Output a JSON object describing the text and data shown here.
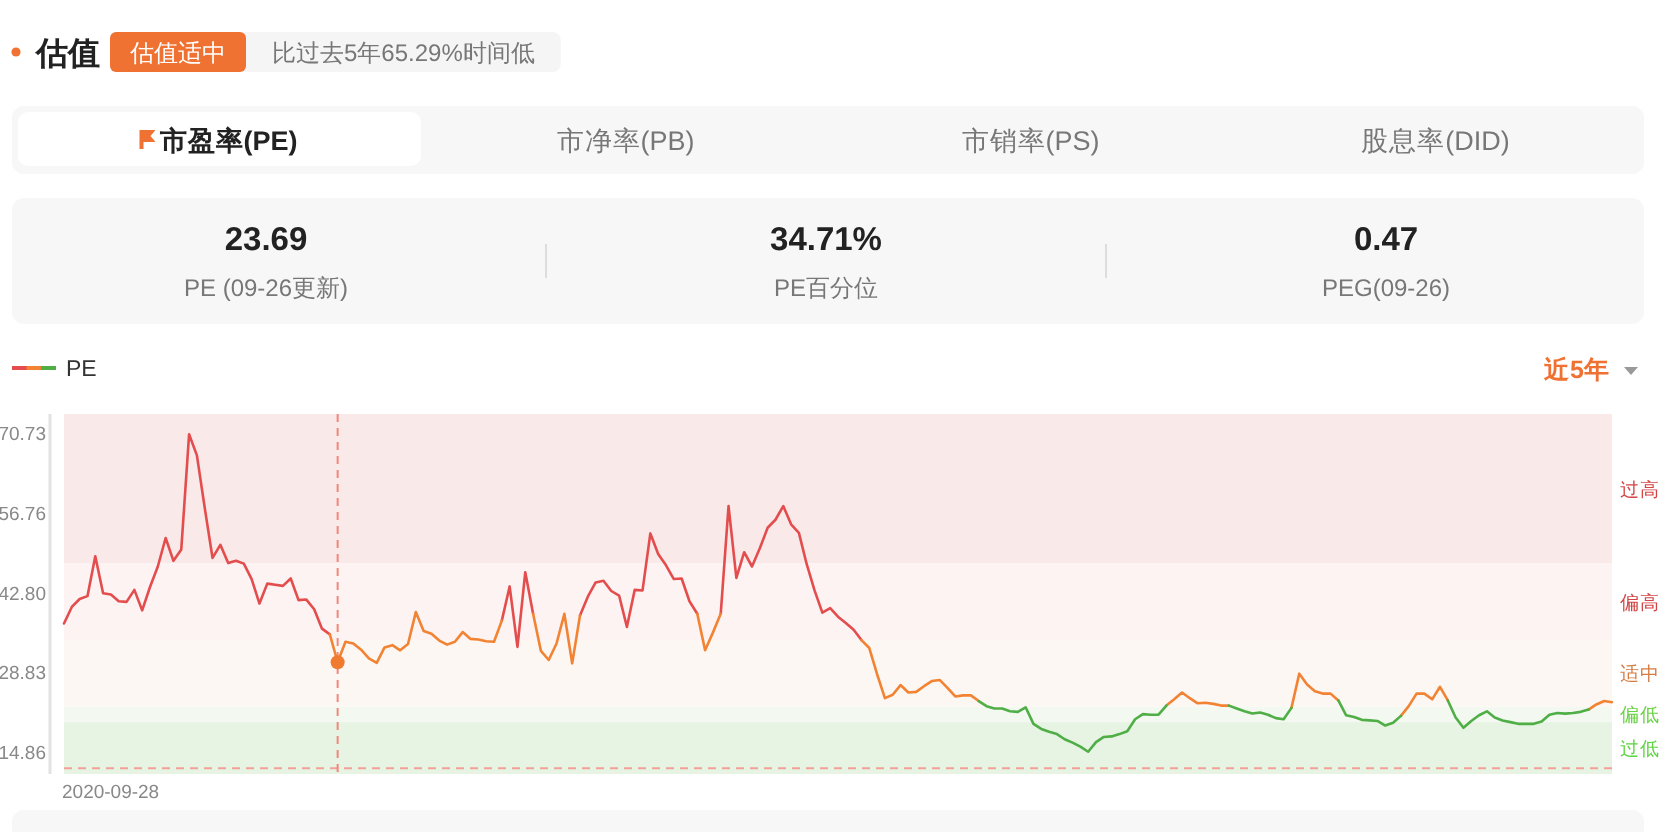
{
  "chart_data": {
    "type": "line",
    "title": "估值",
    "subtitle": "比过去5年65.29%时间低",
    "annotations": [
      "估值适中",
      "市盈率(PE)",
      "市净率(PB)",
      "市销率(PS)",
      "股息率(DID)",
      "23.69",
      "PE (09-26更新)",
      "34.71%",
      "PE百分位",
      "0.47",
      "PEG(09-26)",
      "近5年",
      "2020-09-28"
    ],
    "categories": [
      null,
      null,
      null,
      null,
      null,
      null,
      null,
      null,
      null,
      null,
      null,
      null,
      null,
      null,
      null,
      null,
      null,
      null,
      null,
      null,
      null,
      null,
      null,
      null,
      null,
      null,
      null,
      null,
      null,
      null,
      null,
      null,
      null,
      null,
      null,
      null,
      null,
      null,
      null,
      null,
      null,
      null,
      null,
      null,
      null,
      null,
      null,
      null,
      null,
      null,
      null,
      null,
      null,
      null,
      null,
      null,
      null,
      null,
      null,
      null,
      null,
      null,
      null,
      null,
      null,
      null,
      null,
      null,
      null,
      null,
      null,
      null,
      null,
      null,
      null,
      null,
      null,
      null,
      null,
      null,
      null,
      null,
      null,
      null,
      null,
      null,
      null,
      null,
      null,
      null,
      null,
      null,
      null,
      null,
      null,
      null,
      null,
      null,
      null,
      null,
      null,
      null,
      null,
      null,
      null,
      null,
      null,
      null,
      null,
      null,
      null,
      null,
      null,
      null,
      null,
      null,
      null,
      null,
      null,
      null,
      null,
      null,
      null,
      null,
      null,
      null,
      null,
      null,
      null,
      null,
      null,
      null,
      null,
      null,
      null,
      null,
      null,
      null,
      null,
      null,
      null,
      null,
      null,
      null,
      null,
      null,
      null,
      null,
      null,
      null,
      null,
      null,
      null,
      null,
      null,
      null,
      null,
      null,
      null,
      null,
      null,
      null,
      null,
      null,
      null,
      null,
      null,
      null,
      null,
      null,
      null,
      null,
      null,
      null,
      null,
      null,
      null,
      null,
      null,
      null,
      null,
      null,
      null,
      null,
      null,
      null,
      null,
      null,
      null,
      null,
      null,
      null,
      null,
      null,
      null,
      null,
      null,
      null,
      null
    ],
    "ylim": [
      11.1,
      74.25
    ],
    "yticks": [
      {
        "value": 14.86,
        "label": "14.86"
      },
      {
        "value": 28.83,
        "label": "28.83"
      },
      {
        "value": 42.8,
        "label": "42.80"
      },
      {
        "value": 56.76,
        "label": "56.76"
      },
      {
        "value": 70.73,
        "label": "70.73"
      }
    ],
    "legend": "top left",
    "bands": [
      {
        "axis": "y",
        "from": 48.1,
        "to": 74.25,
        "label": "过高",
        "color": "#f9e9e9"
      },
      {
        "axis": "y",
        "from": 34.6,
        "to": 48.1,
        "label": "偏高",
        "color": "#fdf3f3"
      },
      {
        "axis": "y",
        "from": 22.9,
        "to": 34.6,
        "label": "适中",
        "color": "#fdf7f3"
      },
      {
        "axis": "y",
        "from": 20.2,
        "to": 22.9,
        "label": "偏低",
        "color": "#f3f9f1"
      },
      {
        "axis": "y",
        "from": 11.1,
        "to": 20.2,
        "label": "过低",
        "color": "#e7f4e4"
      }
    ],
    "ref_lines": [
      {
        "axis": "y",
        "value": 12.1,
        "color": "#f2a097",
        "line_style": "dashed"
      }
    ],
    "series": [
      {
        "name": "PE",
        "color": "#e34d4d",
        "values": [
          37.5,
          40.4,
          41.8,
          42.3,
          49.3,
          42.8,
          42.6,
          41.4,
          41.3,
          43.4,
          39.8,
          43.9,
          47.5,
          52.5,
          48.5,
          50.5,
          70.7,
          67.0,
          57.8,
          49.0,
          51.3,
          48.1,
          48.5,
          48.0,
          45.3,
          41.0,
          44.5,
          44.3,
          44.1,
          45.4,
          41.6,
          41.7,
          40.0,
          36.6,
          35.6,
          null,
          null,
          null,
          null,
          null,
          null,
          null,
          null,
          null,
          null,
          null,
          null,
          null,
          null,
          null,
          null,
          null,
          null,
          null,
          null,
          null,
          38.0,
          44.0,
          33.4,
          46.5,
          39.2,
          null,
          null,
          null,
          null,
          null,
          38.9,
          42.2,
          44.7,
          45.0,
          43.2,
          42.4,
          36.9,
          43.4,
          43.3,
          53.3,
          49.7,
          47.7,
          45.3,
          45.4,
          41.4,
          39.2,
          null,
          null,
          39.2,
          58.1,
          45.5,
          50.0,
          47.5,
          50.7,
          54.3,
          55.7,
          58.1,
          54.9,
          53.4,
          47.9,
          43.3,
          39.4,
          40.2,
          38.7,
          37.6,
          36.4,
          34.6,
          null,
          null,
          null,
          null,
          null,
          null,
          null,
          null,
          null,
          null,
          null,
          null,
          null,
          null,
          null,
          null,
          null,
          null,
          null,
          null,
          null,
          null,
          null,
          null,
          null,
          null,
          null,
          null,
          null,
          null,
          null,
          null,
          null,
          null,
          null,
          null,
          null,
          null,
          null,
          null,
          null,
          null,
          null,
          null,
          null,
          null,
          null,
          null,
          null,
          null,
          null,
          null,
          null,
          null,
          null,
          null,
          null,
          null,
          null,
          null,
          null,
          null,
          null,
          null,
          null,
          null,
          null,
          null,
          null,
          null,
          null,
          null,
          null,
          null,
          null,
          null,
          null,
          null,
          null,
          null,
          null,
          null,
          null,
          null,
          null,
          null,
          null,
          null,
          null,
          null,
          null,
          null,
          null,
          null,
          null,
          null
        ]
      },
      {
        "color": "#f28333",
        "values": [
          null,
          null,
          null,
          null,
          null,
          null,
          null,
          null,
          null,
          null,
          null,
          null,
          null,
          null,
          null,
          null,
          null,
          null,
          null,
          null,
          null,
          null,
          null,
          null,
          null,
          null,
          null,
          null,
          null,
          null,
          null,
          null,
          null,
          null,
          35.6,
          30.7,
          34.3,
          34.0,
          32.9,
          31.4,
          30.6,
          33.3,
          33.7,
          32.8,
          33.9,
          39.5,
          36.2,
          35.7,
          34.5,
          33.8,
          34.3,
          36.0,
          34.8,
          34.7,
          34.4,
          34.3,
          38.0,
          null,
          null,
          null,
          39.2,
          32.7,
          31.1,
          34.0,
          39.2,
          30.5,
          38.9,
          null,
          null,
          null,
          null,
          null,
          null,
          null,
          null,
          null,
          null,
          null,
          null,
          null,
          null,
          39.2,
          32.8,
          35.9,
          39.2,
          null,
          null,
          null,
          null,
          null,
          null,
          null,
          null,
          null,
          null,
          null,
          null,
          null,
          null,
          null,
          null,
          null,
          34.6,
          33.2,
          28.6,
          24.4,
          25.0,
          26.7,
          25.4,
          25.5,
          26.5,
          27.4,
          27.6,
          26.2,
          24.7,
          24.9,
          24.9,
          23.9,
          null,
          null,
          null,
          null,
          null,
          null,
          null,
          null,
          null,
          null,
          null,
          null,
          null,
          null,
          null,
          null,
          null,
          null,
          null,
          null,
          null,
          null,
          null,
          23.1,
          24.2,
          25.4,
          24.4,
          23.5,
          23.6,
          23.4,
          23.1,
          23.1,
          null,
          null,
          null,
          null,
          null,
          null,
          null,
          22.7,
          28.7,
          26.8,
          25.6,
          25.2,
          25.2,
          24.0,
          null,
          null,
          null,
          null,
          null,
          null,
          null,
          21.3,
          23.0,
          25.2,
          25.2,
          24.2,
          26.4,
          24.0,
          null,
          null,
          null,
          null,
          null,
          null,
          null,
          null,
          null,
          null,
          null,
          null,
          null,
          null,
          null,
          null,
          null,
          22.4,
          23.3,
          23.9,
          23.7
        ]
      },
      {
        "color": "#4fae45",
        "values": [
          null,
          null,
          null,
          null,
          null,
          null,
          null,
          null,
          null,
          null,
          null,
          null,
          null,
          null,
          null,
          null,
          null,
          null,
          null,
          null,
          null,
          null,
          null,
          null,
          null,
          null,
          null,
          null,
          null,
          null,
          null,
          null,
          null,
          null,
          null,
          null,
          null,
          null,
          null,
          null,
          null,
          null,
          null,
          null,
          null,
          null,
          null,
          null,
          null,
          null,
          null,
          null,
          null,
          null,
          null,
          null,
          null,
          null,
          null,
          null,
          null,
          null,
          null,
          null,
          null,
          null,
          null,
          null,
          null,
          null,
          null,
          null,
          null,
          null,
          null,
          null,
          null,
          null,
          null,
          null,
          null,
          null,
          null,
          null,
          null,
          null,
          null,
          null,
          null,
          null,
          null,
          null,
          null,
          null,
          null,
          null,
          null,
          null,
          null,
          null,
          null,
          null,
          null,
          null,
          null,
          null,
          null,
          null,
          null,
          null,
          null,
          null,
          null,
          null,
          null,
          null,
          null,
          23.9,
          23.0,
          22.6,
          22.6,
          22.1,
          22.0,
          22.8,
          19.9,
          19.0,
          18.5,
          18.1,
          17.2,
          16.6,
          15.9,
          15.0,
          16.7,
          17.6,
          17.7,
          18.1,
          18.6,
          20.7,
          21.6,
          21.5,
          21.5,
          23.1,
          null,
          null,
          null,
          null,
          null,
          null,
          null,
          23.1,
          22.6,
          22.1,
          21.7,
          21.9,
          21.5,
          20.9,
          20.7,
          22.7,
          null,
          null,
          null,
          null,
          null,
          24.0,
          21.4,
          21.1,
          20.6,
          20.5,
          20.4,
          19.6,
          20.1,
          21.3,
          null,
          null,
          null,
          null,
          null,
          24.0,
          21.0,
          19.2,
          20.4,
          21.4,
          22.1,
          21.0,
          20.5,
          20.2,
          19.9,
          19.9,
          19.9,
          20.3,
          21.5,
          21.8,
          21.7,
          21.8,
          22.0,
          22.4,
          null,
          null,
          null
        ]
      },
      {
        "type": "scatter",
        "color": "#f07a30",
        "marker": "circle",
        "values": [
          null,
          null,
          null,
          null,
          null,
          null,
          null,
          null,
          null,
          null,
          null,
          null,
          null,
          null,
          null,
          null,
          null,
          null,
          null,
          null,
          null,
          null,
          null,
          null,
          null,
          null,
          null,
          null,
          null,
          null,
          null,
          null,
          null,
          null,
          null,
          30.7,
          null,
          null,
          null,
          null,
          null,
          null,
          null,
          null,
          null,
          null,
          null,
          null,
          null,
          null,
          null,
          null,
          null,
          null,
          null,
          null,
          null,
          null,
          null,
          null,
          null,
          null,
          null,
          null,
          null,
          null,
          null,
          null,
          null,
          null,
          null,
          null,
          null,
          null,
          null,
          null,
          null,
          null,
          null,
          null,
          null,
          null,
          null,
          null,
          null,
          null,
          null,
          null,
          null,
          null,
          null,
          null,
          null,
          null,
          null,
          null,
          null,
          null,
          null,
          null,
          null,
          null,
          null,
          null,
          null,
          null,
          null,
          null,
          null,
          null,
          null,
          null,
          null,
          null,
          null,
          null,
          null,
          null,
          null,
          null,
          null,
          null,
          null,
          null,
          null,
          null,
          null,
          null,
          null,
          null,
          null,
          null,
          null,
          null,
          null,
          null,
          null,
          null,
          null,
          null,
          null,
          null,
          null,
          null,
          null,
          null,
          null,
          null,
          null,
          null,
          null,
          null,
          null,
          null,
          null,
          null,
          null,
          null,
          null,
          null,
          null,
          null,
          null,
          null,
          null,
          null,
          null,
          null,
          null,
          null,
          null,
          null,
          null,
          null,
          null,
          null,
          null,
          null,
          null,
          null,
          null,
          null,
          null,
          null,
          null,
          null,
          null,
          null,
          null,
          null,
          null,
          null,
          null,
          null,
          null,
          null,
          null,
          null,
          null
        ]
      }
    ]
  }
}
